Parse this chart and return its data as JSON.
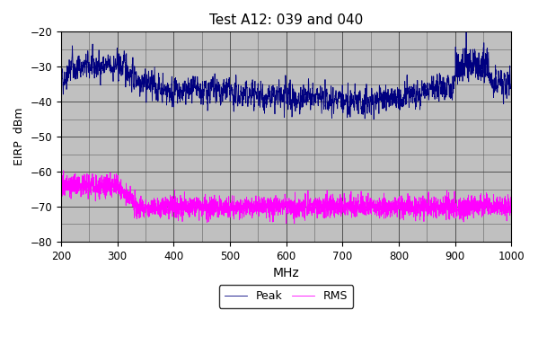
{
  "title": "Test A12: 039 and 040",
  "xlabel": "MHz",
  "ylabel": "EIRP  dBm",
  "xlim": [
    200,
    1000
  ],
  "ylim": [
    -80,
    -20
  ],
  "yticks": [
    -80,
    -70,
    -60,
    -50,
    -40,
    -30,
    -20
  ],
  "xticks": [
    200,
    300,
    400,
    500,
    600,
    700,
    800,
    900,
    1000
  ],
  "peak_color": "#000080",
  "rms_color": "#FF00FF",
  "bg_color": "#C0C0C0",
  "fig_bg_color": "#FFFFFF",
  "legend_peak_label": "Peak",
  "legend_rms_label": "RMS",
  "seed": 42
}
